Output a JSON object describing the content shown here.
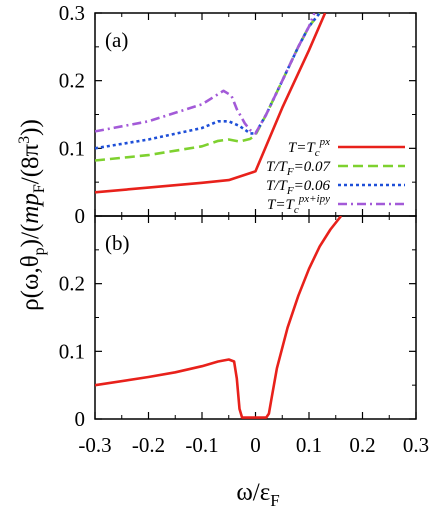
{
  "chart_data": [
    {
      "panel": "(a)",
      "type": "line",
      "ylim": [
        0,
        0.3
      ],
      "xlim": [
        -0.3,
        0.3
      ],
      "yticks": [
        0,
        0.1,
        0.2,
        0.3
      ],
      "ytick_labels": [
        "0",
        "0.1",
        "0.2",
        "0.3"
      ],
      "legend_position": "right",
      "series": [
        {
          "name": "T=Tc^px",
          "legend_label": "T=T",
          "legend_sub": "c",
          "legend_sup": "px",
          "color": "#e8211b",
          "dash": "solid",
          "x": [
            -0.3,
            -0.2,
            -0.1,
            -0.05,
            0.0,
            0.05,
            0.1,
            0.13
          ],
          "y": [
            0.035,
            0.042,
            0.049,
            0.053,
            0.066,
            0.16,
            0.245,
            0.3
          ]
        },
        {
          "name": "T/TF=0.07",
          "legend_label": "T/T",
          "legend_sub": "F",
          "legend_tail": "=0.07",
          "color": "#7ed12f",
          "dash": "dashed",
          "x": [
            -0.3,
            -0.2,
            -0.1,
            -0.07,
            -0.05,
            -0.03,
            -0.01,
            0.0,
            0.02,
            0.05,
            0.08,
            0.1,
            0.12
          ],
          "y": [
            0.082,
            0.09,
            0.103,
            0.111,
            0.113,
            0.11,
            0.114,
            0.12,
            0.15,
            0.2,
            0.25,
            0.28,
            0.3
          ]
        },
        {
          "name": "T/TF=0.06",
          "legend_label": "T/T",
          "legend_sub": "F",
          "legend_tail": "=0.06",
          "color": "#1e4fd8",
          "dash": "dotted",
          "x": [
            -0.3,
            -0.2,
            -0.1,
            -0.07,
            -0.05,
            -0.03,
            -0.01,
            0.0,
            0.02,
            0.05,
            0.08,
            0.1,
            0.12
          ],
          "y": [
            0.1,
            0.113,
            0.13,
            0.14,
            0.14,
            0.133,
            0.122,
            0.122,
            0.15,
            0.2,
            0.25,
            0.28,
            0.3
          ]
        },
        {
          "name": "T=Tc^px+ipy",
          "legend_label": "T=T",
          "legend_sub": "c",
          "legend_sup": "px+ipy",
          "color": "#a35ad8",
          "dash": "dashdot",
          "x": [
            -0.3,
            -0.2,
            -0.1,
            -0.06,
            -0.045,
            -0.035,
            -0.02,
            -0.01,
            0.0,
            0.02,
            0.05,
            0.08,
            0.1,
            0.11
          ],
          "y": [
            0.125,
            0.14,
            0.165,
            0.185,
            0.178,
            0.158,
            0.137,
            0.127,
            0.122,
            0.15,
            0.2,
            0.25,
            0.28,
            0.3
          ]
        }
      ]
    },
    {
      "panel": "(b)",
      "type": "line",
      "ylim": [
        0,
        0.3
      ],
      "xlim": [
        -0.3,
        0.3
      ],
      "yticks": [
        0,
        0.1,
        0.2
      ],
      "ytick_labels": [
        "0",
        "0.1",
        "0.2"
      ],
      "series": [
        {
          "color": "#e8211b",
          "dash": "solid",
          "x": [
            -0.3,
            -0.2,
            -0.15,
            -0.1,
            -0.07,
            -0.05,
            -0.04,
            -0.035,
            -0.03,
            -0.025,
            0.0,
            0.02,
            0.025,
            0.03,
            0.04,
            0.06,
            0.08,
            0.1,
            0.12,
            0.14,
            0.16
          ],
          "y": [
            0.05,
            0.062,
            0.069,
            0.078,
            0.085,
            0.088,
            0.085,
            0.06,
            0.015,
            0.002,
            0.002,
            0.002,
            0.008,
            0.03,
            0.075,
            0.135,
            0.182,
            0.222,
            0.255,
            0.28,
            0.3
          ]
        }
      ]
    }
  ],
  "xaxis": {
    "xticks": [
      -0.3,
      -0.2,
      -0.1,
      0,
      0.1,
      0.2,
      0.3
    ],
    "xtick_labels": [
      "-0.3",
      "-0.2",
      "-0.1",
      "0",
      "0.1",
      "0.2",
      "0.3"
    ],
    "label": "ω/ε",
    "label_sub": "F"
  },
  "yaxis": {
    "label_main": "ρ(ω,θ",
    "label_sub1": "p",
    "label_mid": ")/(",
    "label_m": "mp",
    "label_sub2": "F",
    "label_end": "/(8π",
    "label_sup": "3",
    "label_close": "))"
  },
  "panel_labels": [
    "(a)",
    "(b)"
  ]
}
